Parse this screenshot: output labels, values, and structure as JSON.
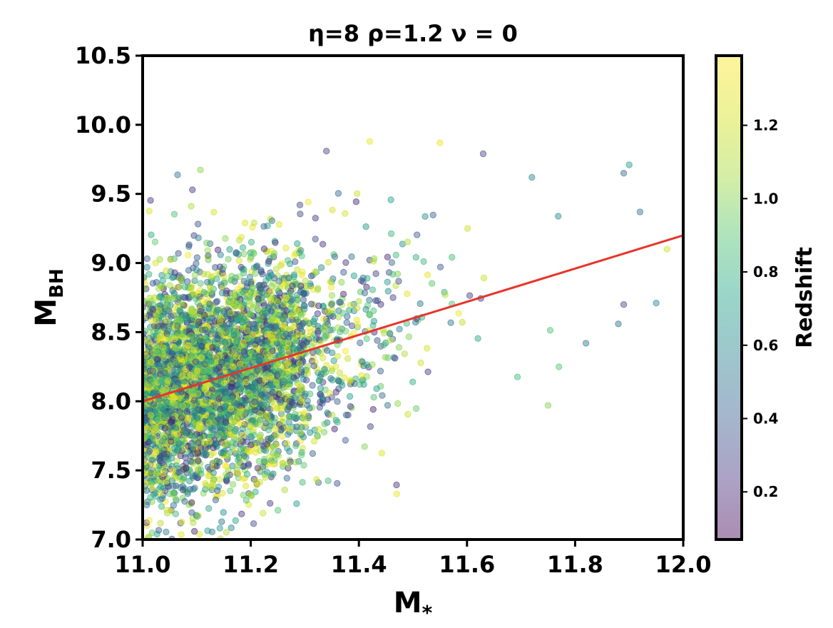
{
  "chart_data": {
    "type": "scatter",
    "title": "η=8 ρ=1.2 ν = 0",
    "xlabel": "M",
    "xlabel_sub": "*",
    "ylabel": "M",
    "ylabel_sub": "BH",
    "xlim": [
      11.0,
      12.0
    ],
    "ylim": [
      7.0,
      10.5
    ],
    "xticks": [
      "11.0",
      "11.2",
      "11.4",
      "11.6",
      "11.8",
      "12.0"
    ],
    "xtick_values": [
      11.0,
      11.2,
      11.4,
      11.6,
      11.8,
      12.0
    ],
    "yticks": [
      "7.0",
      "7.5",
      "8.0",
      "8.5",
      "9.0",
      "9.5",
      "10.0",
      "10.5"
    ],
    "ytick_values": [
      7.0,
      7.5,
      8.0,
      8.5,
      9.0,
      9.5,
      10.0,
      10.5
    ],
    "grid": false,
    "fit_line": {
      "color": "#e8342a",
      "x": [
        11.0,
        12.0
      ],
      "y": [
        8.0,
        9.2
      ]
    },
    "colorbar": {
      "label": "Redshift",
      "range": [
        0.07,
        1.39
      ],
      "ticks": [
        "0.2",
        "0.4",
        "0.6",
        "0.8",
        "1.0",
        "1.2"
      ],
      "tick_values": [
        0.2,
        0.4,
        0.6,
        0.8,
        1.0,
        1.2
      ],
      "colormap": "viridis",
      "alpha": 0.45
    },
    "scatter_model": {
      "note": "dense cloud of points; distribution approximated from the figure",
      "x_mean": 11.2,
      "x_spread": 0.18,
      "y_intercept_at_11": 8.0,
      "slope": 1.2,
      "y_scatter": 0.42,
      "n_points": 4200,
      "highlight_points": [
        {
          "x": 11.42,
          "y": 9.88,
          "z": 1.3
        },
        {
          "x": 11.55,
          "y": 9.87,
          "z": 1.3
        },
        {
          "x": 11.34,
          "y": 9.81,
          "z": 0.3
        },
        {
          "x": 11.63,
          "y": 9.79,
          "z": 0.3
        },
        {
          "x": 11.9,
          "y": 9.71,
          "z": 0.7
        },
        {
          "x": 11.89,
          "y": 9.65,
          "z": 0.45
        },
        {
          "x": 11.72,
          "y": 9.62,
          "z": 0.6
        },
        {
          "x": 11.92,
          "y": 9.37,
          "z": 0.5
        },
        {
          "x": 11.95,
          "y": 8.71,
          "z": 0.6
        },
        {
          "x": 11.88,
          "y": 8.56,
          "z": 0.5
        },
        {
          "x": 11.89,
          "y": 8.7,
          "z": 0.3
        },
        {
          "x": 11.77,
          "y": 8.25,
          "z": 0.9
        },
        {
          "x": 11.82,
          "y": 8.42,
          "z": 0.5
        },
        {
          "x": 11.75,
          "y": 7.97,
          "z": 1.0
        },
        {
          "x": 11.47,
          "y": 7.33,
          "z": 1.3
        },
        {
          "x": 11.97,
          "y": 9.1,
          "z": 1.2
        }
      ]
    }
  }
}
